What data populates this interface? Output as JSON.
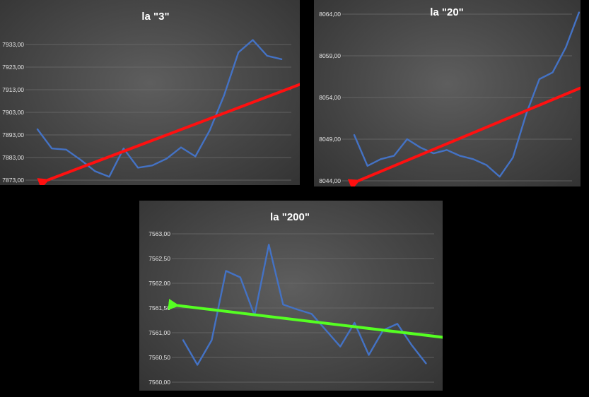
{
  "chart_data": [
    {
      "type": "line",
      "title": "la \"3\"",
      "y_ticks": [
        "7873,00",
        "7883,00",
        "7893,00",
        "7903,00",
        "7913,00",
        "7923,00",
        "7933,00"
      ],
      "ylim": [
        7873,
        7933
      ],
      "series": [
        {
          "values": [
            7895.5,
            7887,
            7886.5,
            7882,
            7877,
            7874.5,
            7887,
            7878.5,
            7879.5,
            7882.5,
            7887.5,
            7883.5,
            7895,
            7910.5,
            7929.5,
            7935,
            7928,
            7926.5
          ],
          "color": "#4472c4"
        }
      ],
      "trend": {
        "from": [
          0.7,
          7873
        ],
        "to": [
          19.8,
          7919
        ],
        "arrow_at": "start",
        "color": "#ff1010"
      },
      "grid": true,
      "legend": "none"
    },
    {
      "type": "line",
      "title": "la \"20\"",
      "y_ticks": [
        "8044,00",
        "8049,00",
        "8054,00",
        "8059,00",
        "8064,00"
      ],
      "ylim": [
        8044,
        8064
      ],
      "series": [
        {
          "values": [
            8049.5,
            8045.8,
            8046.6,
            8047,
            8049,
            8048,
            8047.3,
            8047.7,
            8047,
            8046.6,
            8045.9,
            8044.5,
            8046.8,
            8052,
            8056.2,
            8057,
            8060,
            8064.2
          ],
          "color": "#4472c4"
        }
      ],
      "trend": {
        "from": [
          0.3,
          8044
        ],
        "to": [
          17.8,
          8055.6
        ],
        "arrow_at": "start",
        "color": "#ff1010"
      },
      "grid": true,
      "legend": "none"
    },
    {
      "type": "line",
      "title": "la \"200\"",
      "y_ticks": [
        "7560,00",
        "7560,50",
        "7561,00",
        "7561,50",
        "7562,00",
        "7562,50",
        "7563,00"
      ],
      "ylim": [
        7560,
        7563
      ],
      "series": [
        {
          "values": [
            7560.85,
            7560.35,
            7560.85,
            7562.25,
            7562.12,
            7561.35,
            7562.78,
            7561.57,
            7561.47,
            7561.38,
            7561.05,
            7560.72,
            7561.2,
            7560.55,
            7561.05,
            7561.18,
            7560.75,
            7560.38
          ],
          "color": "#4472c4"
        }
      ],
      "trend": {
        "from": [
          -0.4,
          7561.55
        ],
        "to": [
          18.4,
          7560.9
        ],
        "arrow_at": "start",
        "color": "#55ff22"
      },
      "grid": true,
      "legend": "none"
    }
  ]
}
